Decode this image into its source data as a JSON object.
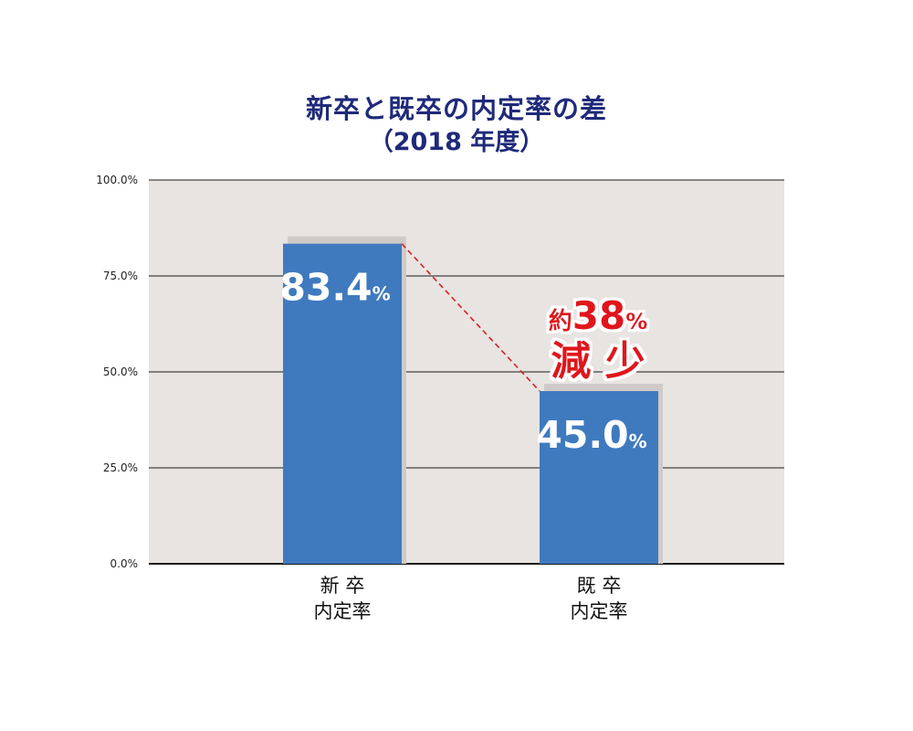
{
  "chart_data": {
    "type": "bar",
    "title": "新卒と既卒の内定率の差",
    "subtitle": "（2018 年度）",
    "categories": [
      [
        "新 卒",
        "内定率"
      ],
      [
        "既 卒",
        "内定率"
      ]
    ],
    "values": [
      83.4,
      45.0
    ],
    "data_labels": [
      {
        "number": "83.4",
        "unit": "%"
      },
      {
        "number": "45.0",
        "unit": "%"
      }
    ],
    "y_ticks": [
      "0.0%",
      "25.0%",
      "50.0%",
      "75.0%",
      "100.0%"
    ],
    "ylim": [
      0,
      100
    ],
    "grid": true,
    "annotation": {
      "prefix": "約",
      "number": "38",
      "unit": "%",
      "text": "減 少"
    },
    "colors": {
      "bar": "#3f7abf",
      "plot_bg": "#e8e4e1",
      "title": "#1f2a7a",
      "annotation": "#e0141e",
      "connector": "#d6202a"
    }
  }
}
